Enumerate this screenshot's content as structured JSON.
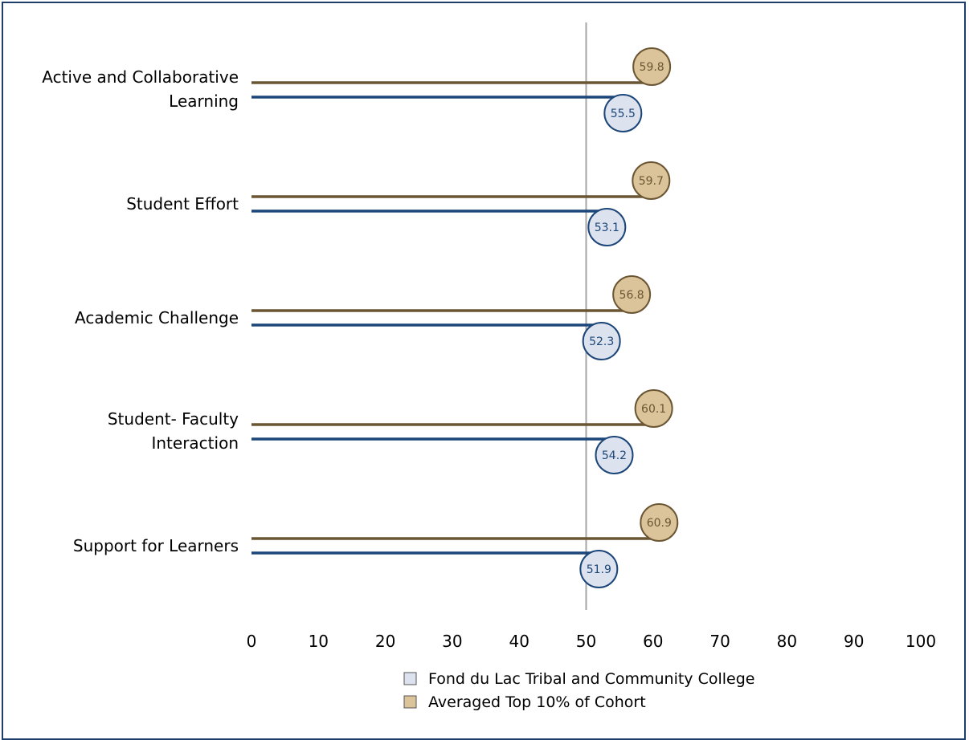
{
  "chart_data": {
    "type": "bar",
    "orientation": "horizontal",
    "title": "",
    "xlabel": "",
    "ylabel": "",
    "xlim": [
      0,
      100
    ],
    "x_ticks": [
      0,
      10,
      20,
      30,
      40,
      50,
      60,
      70,
      80,
      90,
      100
    ],
    "reference_line": 50,
    "grid": false,
    "legend_position": "bottom",
    "categories": [
      [
        "Active and Collaborative",
        "Learning"
      ],
      [
        "Student Effort"
      ],
      [
        "Academic Challenge"
      ],
      [
        "Student- Faculty",
        "Interaction"
      ],
      [
        "Support for Learners"
      ]
    ],
    "series": [
      {
        "name": "Averaged Top 10% of Cohort",
        "values": [
          59.8,
          59.7,
          56.8,
          60.1,
          60.9
        ],
        "line_color": "#6b5634",
        "fill_color": "#dcc49a"
      },
      {
        "name": "Fond du Lac Tribal and Community College",
        "values": [
          55.5,
          53.1,
          52.3,
          54.2,
          51.9
        ],
        "line_color": "#1c4679",
        "fill_color": "#dce3ee"
      }
    ],
    "legend_order": [
      "Fond du Lac Tribal and Community College",
      "Averaged Top 10% of Cohort"
    ],
    "colors": {
      "reference_line": "#a6a6a6",
      "border": "#1f3d6b"
    }
  }
}
